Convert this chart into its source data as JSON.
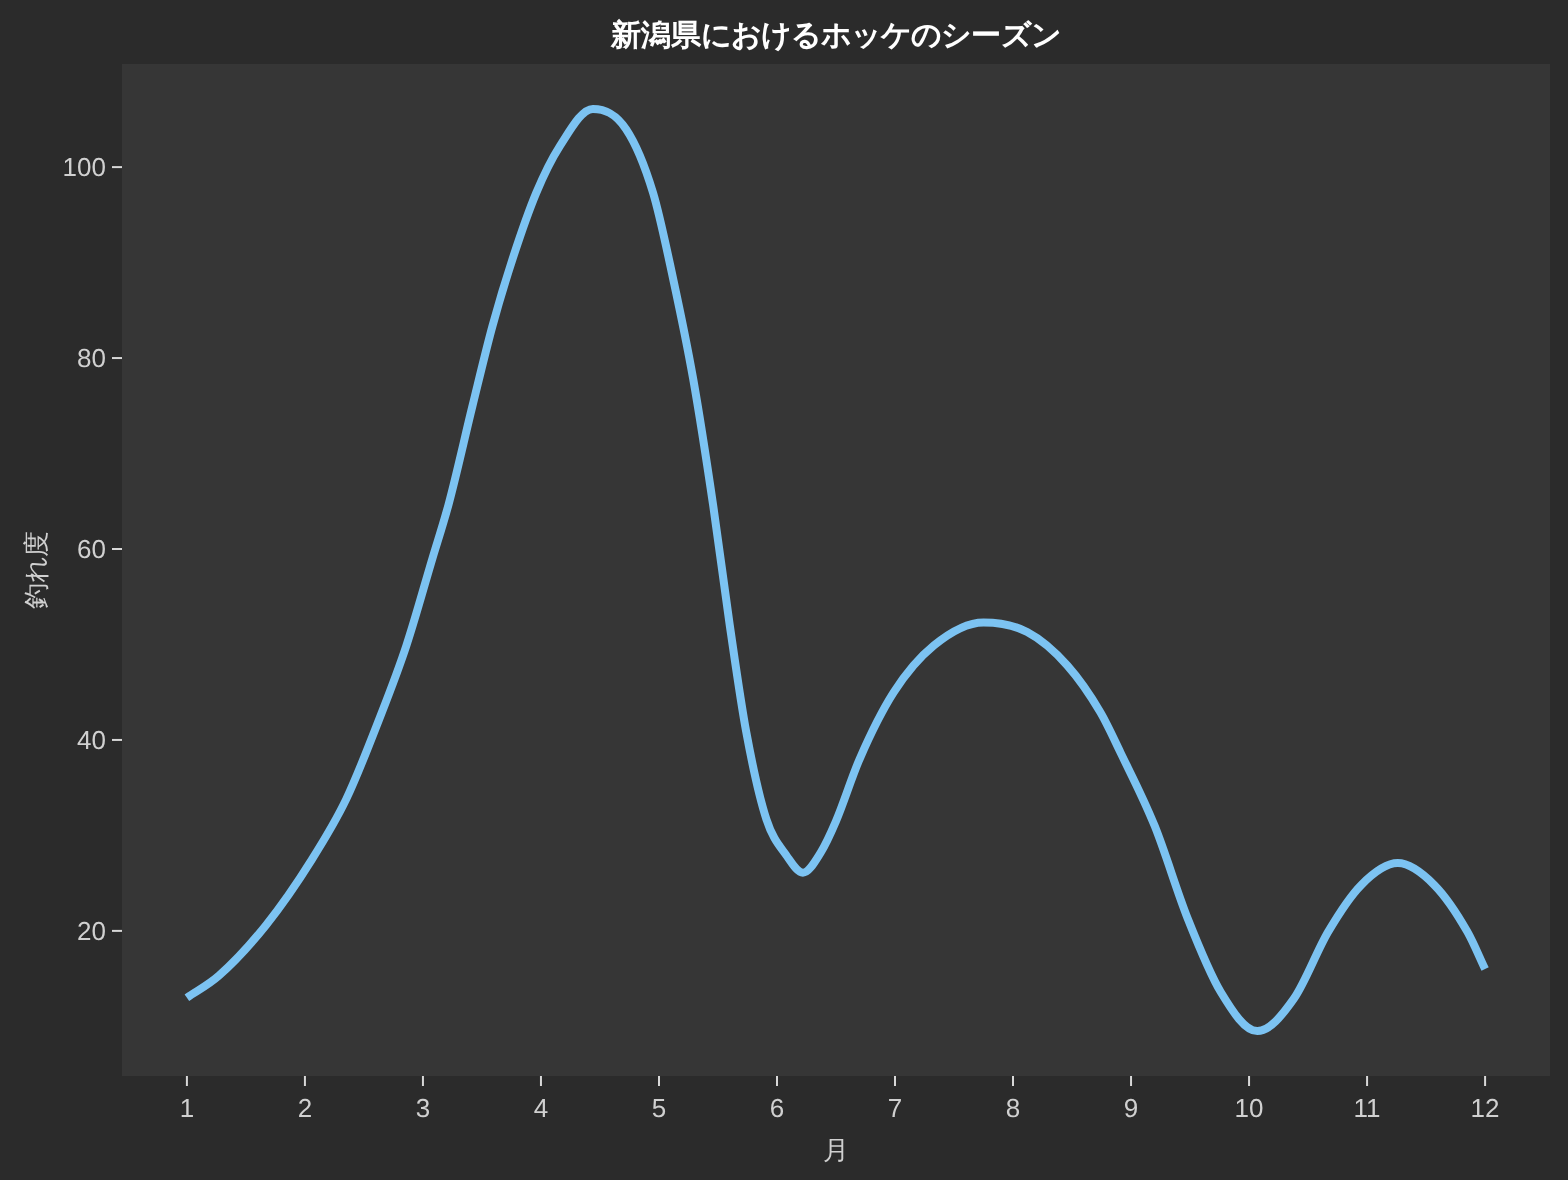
{
  "chart_data": {
    "type": "line",
    "title": "新潟県におけるホッケのシーズン",
    "xlabel": "月",
    "ylabel": "釣れ度",
    "x": [
      1,
      1.27,
      1.67,
      2.06,
      2.35,
      2.63,
      2.86,
      3.08,
      3.22,
      3.42,
      3.59,
      3.76,
      3.96,
      4.16,
      4.44,
      4.72,
      4.95,
      5.12,
      5.29,
      5.46,
      5.6,
      5.74,
      5.91,
      6.08,
      6.22,
      6.37,
      6.5,
      6.7,
      6.99,
      7.33,
      7.75,
      8.12,
      8.46,
      8.74,
      8.91,
      9.2,
      9.48,
      9.76,
      10.07,
      10.38,
      10.67,
      10.95,
      11.26,
      11.57,
      11.85,
      12
    ],
    "values": [
      13,
      15.3,
      20.6,
      27.5,
      33.8,
      42.2,
      49.9,
      59,
      64.8,
      75,
      83.4,
      90.4,
      97.3,
      102.2,
      106.1,
      104,
      97.3,
      88.3,
      77.8,
      64.5,
      52,
      40.8,
      31.7,
      27.9,
      26.1,
      28.2,
      31.5,
      38,
      45,
      49.9,
      52.3,
      51.3,
      47.8,
      42.9,
      38.7,
      31,
      21.3,
      13.6,
      9.5,
      12.9,
      19.9,
      24.8,
      27.1,
      24.8,
      19.9,
      16
    ],
    "color": "#7cc3f2",
    "line_style": "solid",
    "xlim": [
      0.45,
      12.55
    ],
    "ylim": [
      4.8,
      110.8
    ],
    "xticks": [
      1,
      2,
      3,
      4,
      5,
      6,
      7,
      8,
      9,
      10,
      11,
      12
    ],
    "yticks": [
      20,
      40,
      60,
      80,
      100
    ]
  }
}
